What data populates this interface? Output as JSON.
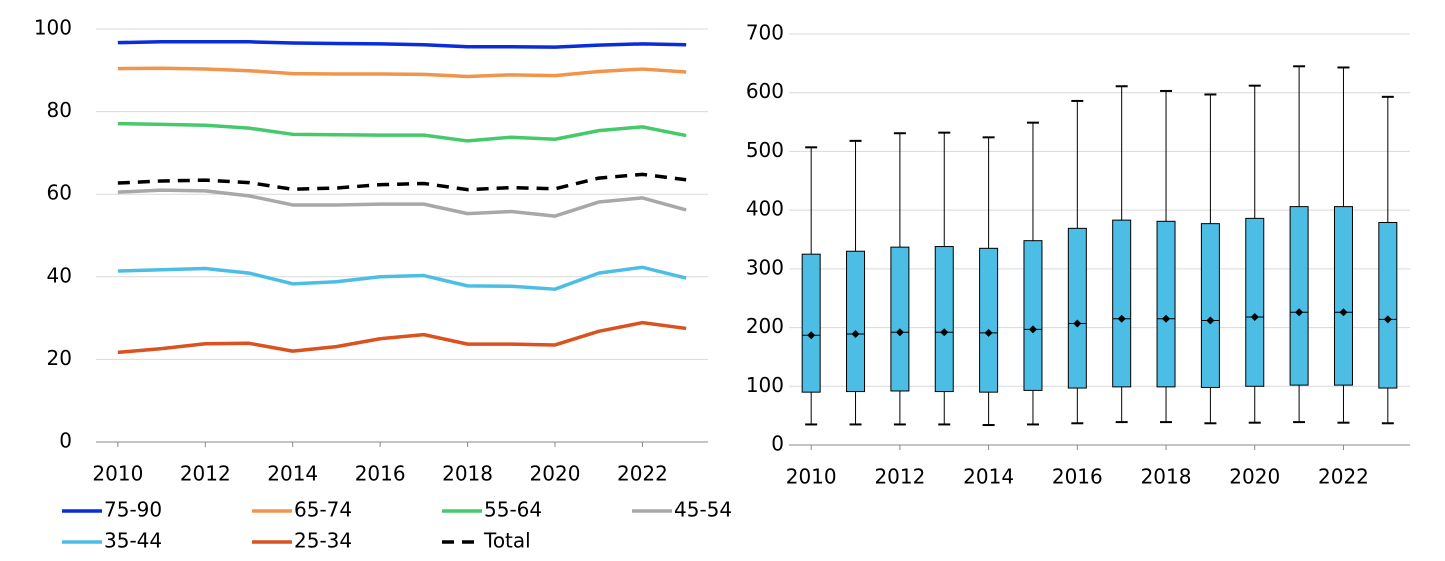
{
  "chart_data": [
    {
      "type": "line",
      "x": [
        2010,
        2011,
        2012,
        2013,
        2014,
        2015,
        2016,
        2017,
        2018,
        2019,
        2020,
        2021,
        2022,
        2023
      ],
      "xlim": [
        2009.5,
        2023.5
      ],
      "xticks": [
        2010,
        2012,
        2014,
        2016,
        2018,
        2020,
        2022
      ],
      "ylim": [
        0,
        100
      ],
      "yticks": [
        0,
        20,
        40,
        60,
        80,
        100
      ],
      "grid": true,
      "legend": "bottom",
      "series": [
        {
          "name": "75-90",
          "color": "#0a2ddb",
          "values": [
            96.7,
            96.9,
            96.9,
            96.9,
            96.6,
            96.5,
            96.4,
            96.2,
            95.7,
            95.7,
            95.6,
            96.1,
            96.4,
            96.2
          ]
        },
        {
          "name": "65-74",
          "color": "#f0954b",
          "values": [
            90.4,
            90.5,
            90.3,
            89.9,
            89.2,
            89.1,
            89.1,
            89.0,
            88.5,
            88.9,
            88.7,
            89.7,
            90.3,
            89.6
          ]
        },
        {
          "name": "55-64",
          "color": "#45c96b",
          "values": [
            77.1,
            76.9,
            76.7,
            76.0,
            74.5,
            74.4,
            74.3,
            74.3,
            72.9,
            73.8,
            73.3,
            75.4,
            76.3,
            74.2
          ]
        },
        {
          "name": "45-54",
          "color": "#a8a8a8",
          "values": [
            60.5,
            61.0,
            60.8,
            59.6,
            57.4,
            57.4,
            57.6,
            57.6,
            55.3,
            55.8,
            54.7,
            58.1,
            59.1,
            56.2
          ]
        },
        {
          "name": "35-44",
          "color": "#4cbee6",
          "values": [
            41.4,
            41.7,
            42.0,
            40.9,
            38.3,
            38.8,
            40.0,
            40.3,
            37.8,
            37.7,
            37.0,
            40.9,
            42.3,
            39.7
          ]
        },
        {
          "name": "25-34",
          "color": "#d9521f",
          "values": [
            21.7,
            22.6,
            23.8,
            23.9,
            22.0,
            23.1,
            25.0,
            26.0,
            23.7,
            23.7,
            23.5,
            26.8,
            28.9,
            27.5
          ]
        },
        {
          "name": "Total",
          "color": "#000000",
          "dashed": true,
          "values": [
            62.7,
            63.2,
            63.4,
            62.8,
            61.2,
            61.5,
            62.3,
            62.6,
            61.1,
            61.6,
            61.3,
            63.9,
            64.8,
            63.5
          ]
        }
      ]
    },
    {
      "type": "box",
      "x": [
        2010,
        2011,
        2012,
        2013,
        2014,
        2015,
        2016,
        2017,
        2018,
        2019,
        2020,
        2021,
        2022,
        2023
      ],
      "xlim": [
        2009.5,
        2023.5
      ],
      "xticks": [
        2010,
        2012,
        2014,
        2016,
        2018,
        2020,
        2022
      ],
      "ylim": [
        0,
        700
      ],
      "yticks": [
        0,
        100,
        200,
        300,
        400,
        500,
        600,
        700
      ],
      "grid": true,
      "color": "#4cbee6",
      "max": [
        507,
        518,
        531,
        532,
        524,
        549,
        586,
        611,
        603,
        597,
        612,
        645,
        643,
        593
      ],
      "q3": [
        325,
        330,
        337,
        338,
        335,
        348,
        369,
        383,
        381,
        377,
        386,
        406,
        406,
        379
      ],
      "median": [
        187,
        189,
        192,
        192,
        191,
        197,
        207,
        215,
        215,
        212,
        218,
        226,
        226,
        214
      ],
      "q1": [
        90,
        91,
        92,
        91,
        90,
        93,
        97,
        99,
        99,
        98,
        100,
        102,
        102,
        97
      ],
      "min": [
        35,
        35,
        35,
        35,
        34,
        35,
        37,
        39,
        39,
        37,
        38,
        39,
        38,
        37
      ]
    }
  ]
}
